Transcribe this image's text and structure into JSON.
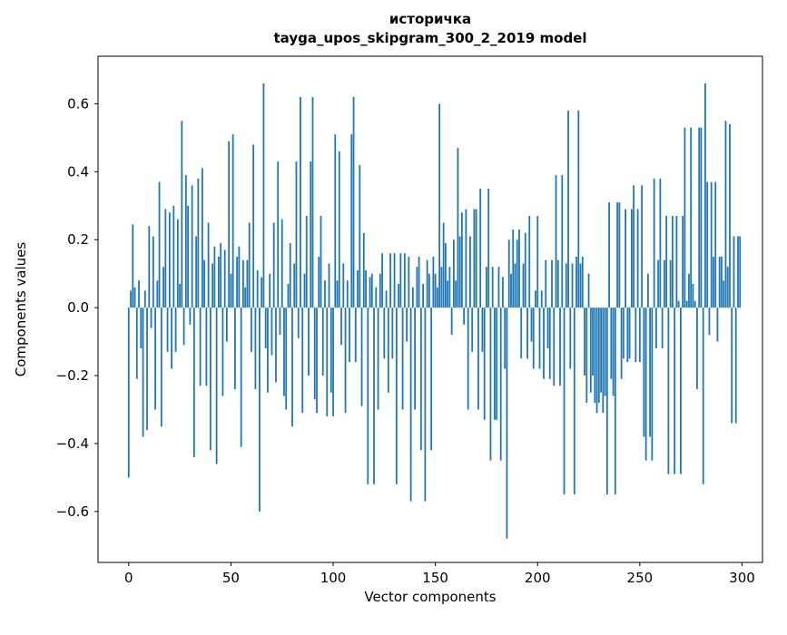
{
  "chart_data": {
    "type": "bar",
    "title_line1": "историчка",
    "title_line2": "tayga_upos_skipgram_300_2_2019 model",
    "xlabel": "Vector components",
    "ylabel": "Components values",
    "x_ticks": [
      0,
      50,
      100,
      150,
      200,
      250,
      300
    ],
    "y_ticks": [
      -0.6,
      -0.4,
      -0.2,
      0.0,
      0.2,
      0.4,
      0.6
    ],
    "xlim": [
      -15,
      310
    ],
    "ylim": [
      -0.75,
      0.74
    ],
    "grid": false,
    "legend": "none",
    "bar_color": "#1f77b4",
    "values": [
      -0.5,
      0.05,
      0.245,
      0.06,
      -0.21,
      0.08,
      -0.12,
      -0.38,
      0.05,
      -0.36,
      0.24,
      -0.06,
      0.21,
      -0.3,
      0.08,
      0.37,
      -0.35,
      0.12,
      0.29,
      -0.13,
      0.28,
      -0.18,
      0.3,
      -0.13,
      0.26,
      0.07,
      0.55,
      -0.11,
      0.39,
      0.3,
      -0.05,
      0.36,
      -0.44,
      0.21,
      0.38,
      -0.23,
      0.41,
      0.14,
      -0.23,
      0.25,
      -0.42,
      0.13,
      0.18,
      -0.46,
      0.15,
      0.19,
      -0.26,
      0.17,
      -0.1,
      0.49,
      0.1,
      0.51,
      -0.24,
      0.15,
      0.18,
      -0.41,
      0.14,
      0.06,
      0.14,
      0.25,
      -0.13,
      0.48,
      -0.24,
      0.11,
      -0.6,
      0.09,
      0.66,
      -0.12,
      -0.25,
      0.1,
      -0.14,
      0.25,
      -0.22,
      0.43,
      -0.08,
      0.26,
      -0.26,
      -0.3,
      0.07,
      0.19,
      -0.35,
      0.13,
      0.43,
      -0.09,
      0.62,
      -0.31,
      0.1,
      0.27,
      -0.2,
      0.43,
      0.62,
      -0.27,
      -0.31,
      0.15,
      0.27,
      -0.2,
      0.08,
      -0.32,
      0.13,
      -0.25,
      -0.32,
      0.51,
      0.08,
      0.46,
      -0.11,
      0.13,
      -0.31,
      0.08,
      -0.16,
      0.51,
      0.62,
      -0.16,
      0.11,
      0.42,
      -0.29,
      0.22,
      0.11,
      -0.52,
      0.09,
      0.1,
      -0.52,
      0.06,
      -0.3,
      0.1,
      0.16,
      -0.15,
      0.05,
      -0.25,
      0.16,
      -0.15,
      0.16,
      -0.52,
      0.07,
      0.16,
      -0.3,
      0.16,
      -0.1,
      0.15,
      -0.57,
      0.06,
      -0.3,
      0.12,
      0.15,
      -0.42,
      0.07,
      -0.57,
      0.14,
      0.1,
      -0.42,
      0.15,
      0.1,
      0.06,
      0.6,
      0.12,
      0.25,
      0.19,
      0.08,
      0.12,
      -0.08,
      0.2,
      0.08,
      0.47,
      0.21,
      0.28,
      -0.05,
      0.29,
      -0.3,
      0.21,
      -0.13,
      0.29,
      0.29,
      -0.3,
      0.35,
      -0.13,
      -0.33,
      0.12,
      0.35,
      -0.45,
      0.12,
      -0.33,
      -0.33,
      0.12,
      -0.45,
      0.09,
      -0.18,
      -0.68,
      0.2,
      0.1,
      0.23,
      0.13,
      0.2,
      0.23,
      -0.15,
      0.13,
      0.22,
      -0.15,
      0.27,
      -0.1,
      -0.18,
      0.05,
      0.27,
      -0.18,
      0.05,
      -0.21,
      0.14,
      -0.12,
      -0.21,
      0.14,
      -0.23,
      0.39,
      0.14,
      -0.23,
      0.39,
      -0.55,
      0.13,
      0.58,
      -0.18,
      0.13,
      -0.55,
      0.15,
      0.58,
      0.13,
      0.15,
      -0.2,
      -0.28,
      0.1,
      -0.25,
      -0.2,
      -0.28,
      -0.31,
      -0.28,
      -0.25,
      -0.31,
      -0.26,
      -0.55,
      0.31,
      -0.21,
      -0.26,
      -0.55,
      0.31,
      0.31,
      -0.21,
      -0.15,
      0.29,
      -0.16,
      -0.15,
      0.29,
      0.36,
      -0.16,
      0.29,
      -0.16,
      0.36,
      -0.38,
      -0.45,
      0.1,
      -0.38,
      -0.45,
      0.38,
      -0.12,
      0.14,
      0.38,
      -0.12,
      0.14,
      0.27,
      -0.49,
      0.14,
      0.27,
      -0.49,
      0.27,
      0.02,
      -0.49,
      0.27,
      0.53,
      0.02,
      0.1,
      0.53,
      0.07,
      0.02,
      -0.24,
      0.53,
      0.53,
      -0.52,
      0.66,
      0.37,
      -0.08,
      0.37,
      0.15,
      0.37,
      -0.1,
      0.15,
      0.15,
      0.08,
      0.55,
      0.12,
      0.54,
      -0.34,
      0.21,
      -0.34,
      0.21,
      0.21
    ]
  }
}
